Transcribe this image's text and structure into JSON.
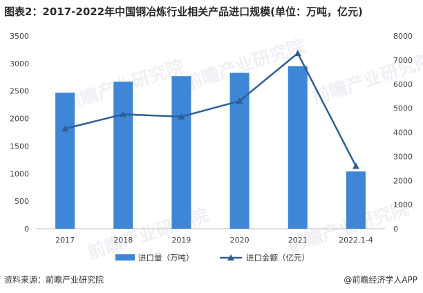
{
  "title": "图表2：2017-2022年中国铜冶炼行业相关产品进口规模(单位：万吨，亿元)",
  "source": "资料来源：前瞻产业研究院",
  "credit": "@前瞻经济学人APP",
  "watermark": "前瞻产业研究院",
  "chart_data": {
    "type": "bar",
    "categories": [
      "2017",
      "2018",
      "2019",
      "2020",
      "2021",
      "2022.1-4"
    ],
    "series": [
      {
        "name": "进口量（万吨）",
        "type": "bar",
        "axis": "left",
        "values": [
          2470,
          2670,
          2770,
          2830,
          2950,
          1040
        ],
        "color": "#3f86d6"
      },
      {
        "name": "进口金额（亿元）",
        "type": "line",
        "axis": "right",
        "values": [
          4150,
          4750,
          4650,
          5300,
          7280,
          2600
        ],
        "color": "#2e5f96",
        "marker": "triangle"
      }
    ],
    "y_left": {
      "min": 0,
      "max": 3500,
      "ticks": [
        0,
        500,
        1000,
        1500,
        2000,
        2500,
        3000,
        3500
      ]
    },
    "y_right": {
      "min": 0,
      "max": 8000,
      "ticks": [
        0,
        1000,
        2000,
        3000,
        4000,
        5000,
        6000,
        7000,
        8000
      ]
    },
    "grid": false,
    "legend": "bottom"
  }
}
